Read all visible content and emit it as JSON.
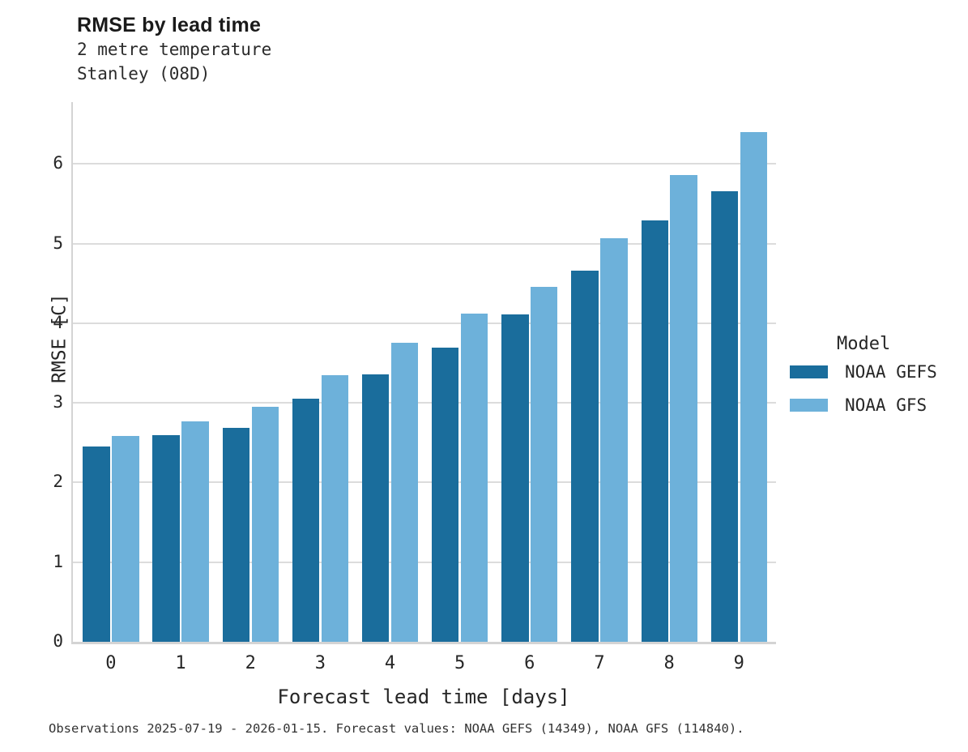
{
  "header": {
    "title": "RMSE by lead time",
    "subtitle1": "2 metre temperature",
    "subtitle2": "Stanley (08D)"
  },
  "footer": "Observations 2025-07-19 - 2026-01-15. Forecast values: NOAA GEFS (14349), NOAA GFS (114840).",
  "chart_data": {
    "type": "bar",
    "title": "RMSE by lead time",
    "subtitle": [
      "2 metre temperature",
      "Stanley (08D)"
    ],
    "xlabel": "Forecast lead time [days]",
    "ylabel": "RMSE [C]",
    "legend_title": "Model",
    "legend_position": "right",
    "grid": "horizontal",
    "categories": [
      "0",
      "1",
      "2",
      "3",
      "4",
      "5",
      "6",
      "7",
      "8",
      "9"
    ],
    "yticks": [
      "0",
      "1",
      "2",
      "3",
      "4",
      "5",
      "6"
    ],
    "ylim": [
      0,
      6.77
    ],
    "series": [
      {
        "name": "NOAA GEFS",
        "color": "#1a6d9c",
        "values": [
          2.45,
          2.59,
          2.69,
          3.05,
          3.36,
          3.69,
          4.11,
          4.66,
          5.29,
          5.66
        ]
      },
      {
        "name": "NOAA GFS",
        "color": "#6db1da",
        "values": [
          2.58,
          2.77,
          2.95,
          3.35,
          3.75,
          4.12,
          4.46,
          5.07,
          5.86,
          6.4
        ]
      }
    ],
    "colors": {
      "gridline": "#dcdcdc",
      "axis": "#d4d4d4"
    }
  }
}
